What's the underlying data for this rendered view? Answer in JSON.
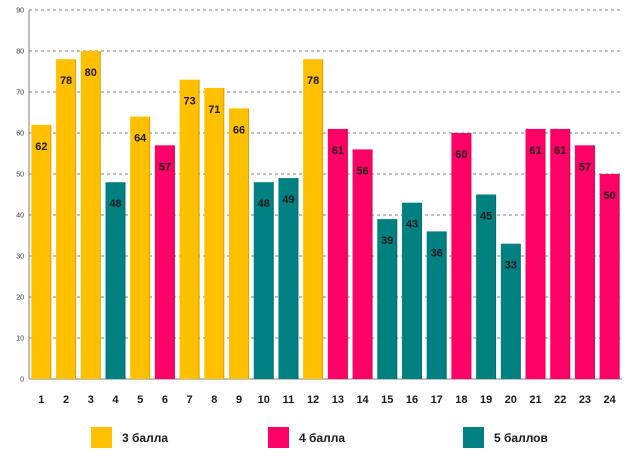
{
  "chart_data": {
    "type": "bar",
    "title": "",
    "xlabel": "",
    "ylabel": "",
    "ylim": [
      0,
      90
    ],
    "ytick_step": 10,
    "grid": true,
    "categories": [
      "1",
      "2",
      "3",
      "4",
      "5",
      "6",
      "7",
      "8",
      "9",
      "10",
      "11",
      "12",
      "13",
      "14",
      "15",
      "16",
      "17",
      "18",
      "19",
      "20",
      "21",
      "22",
      "23",
      "24"
    ],
    "values": [
      62,
      78,
      80,
      48,
      64,
      57,
      73,
      71,
      66,
      48,
      49,
      78,
      61,
      56,
      39,
      43,
      36,
      60,
      45,
      33,
      61,
      61,
      57,
      50
    ],
    "groups": [
      "3",
      "3",
      "3",
      "5",
      "3",
      "4",
      "3",
      "3",
      "3",
      "5",
      "5",
      "3",
      "4",
      "4",
      "5",
      "5",
      "5",
      "4",
      "5",
      "5",
      "4",
      "4",
      "4",
      "4"
    ],
    "legend": [
      {
        "key": "3",
        "label": "3 балла",
        "color": "#FFC000"
      },
      {
        "key": "4",
        "label": "4 балла",
        "color": "#FF0066"
      },
      {
        "key": "5",
        "label": "5 баллов",
        "color": "#008080"
      }
    ],
    "legend_position": "bottom"
  }
}
